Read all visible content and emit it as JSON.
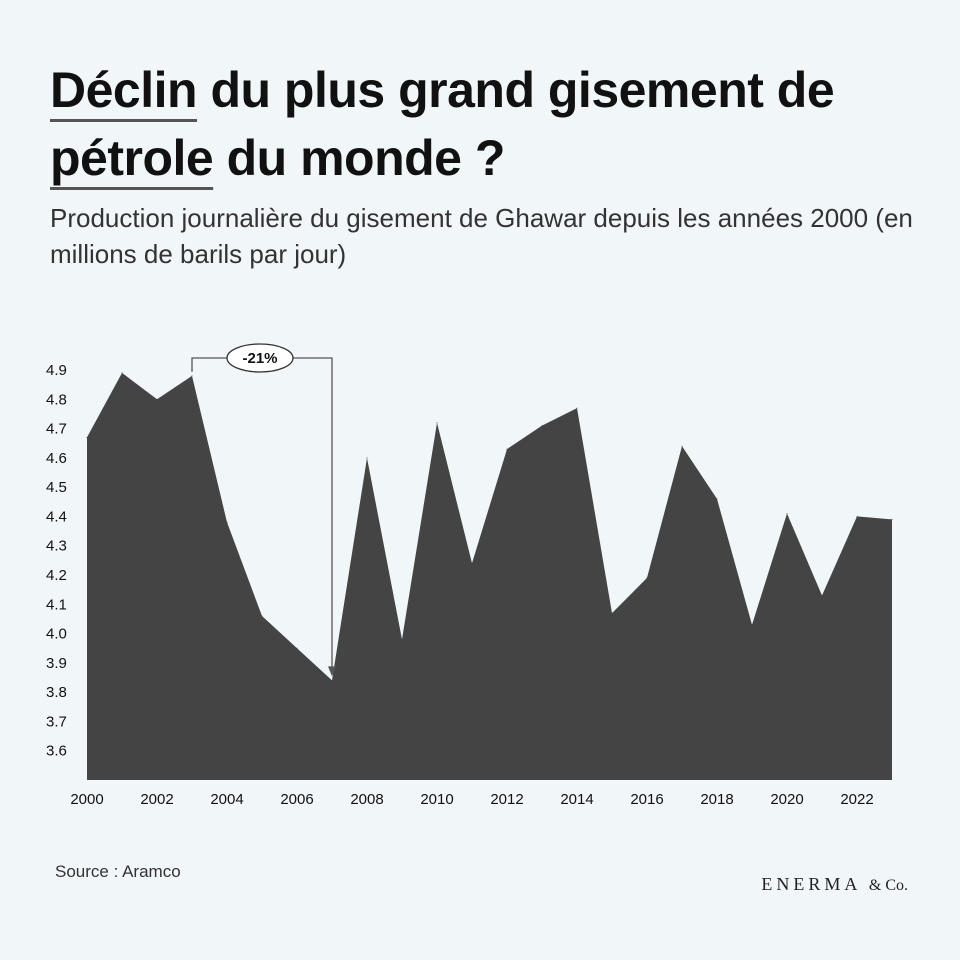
{
  "header": {
    "title_part1": "Déclin",
    "title_part2": " du plus grand gisement de ",
    "title_part3": "pétrole",
    "title_part4": " du monde ?",
    "subtitle": "Production journalière du gisement de Ghawar depuis les années 2000 (en millions de barils par jour)"
  },
  "footer": {
    "source": "Source : Aramco",
    "brand": "ENERMA",
    "brand_suffix": "& Co."
  },
  "colors": {
    "area": "#444444",
    "background": "#f1f6f9"
  },
  "chart_data": {
    "type": "area",
    "title": "",
    "xlabel": "",
    "ylabel": "",
    "ylim": [
      3.5,
      4.9
    ],
    "yticks": [
      "3.6",
      "3.7",
      "3.8",
      "3.9",
      "4.0",
      "4.1",
      "4.2",
      "4.3",
      "4.4",
      "4.5",
      "4.6",
      "4.7",
      "4.8",
      "4.9"
    ],
    "xticks": [
      "2000",
      "2002",
      "2004",
      "2006",
      "2008",
      "2010",
      "2012",
      "2014",
      "2016",
      "2018",
      "2020",
      "2022"
    ],
    "x": [
      2000,
      2001,
      2002,
      2003,
      2004,
      2005,
      2006,
      2007,
      2008,
      2009,
      2010,
      2011,
      2012,
      2013,
      2014,
      2015,
      2016,
      2017,
      2018,
      2019,
      2020,
      2021,
      2022,
      2023
    ],
    "series": [
      {
        "values": [
          4.67,
          4.89,
          4.8,
          4.88,
          4.38,
          4.06,
          3.95,
          3.84,
          4.6,
          3.98,
          4.72,
          4.24,
          4.63,
          4.71,
          4.77,
          4.07,
          4.19,
          4.64,
          4.46,
          4.03,
          4.41,
          4.13,
          4.4,
          4.39
        ]
      }
    ],
    "annotation": {
      "label": "-21%",
      "from_x": 2003,
      "to_x": 2007
    }
  }
}
